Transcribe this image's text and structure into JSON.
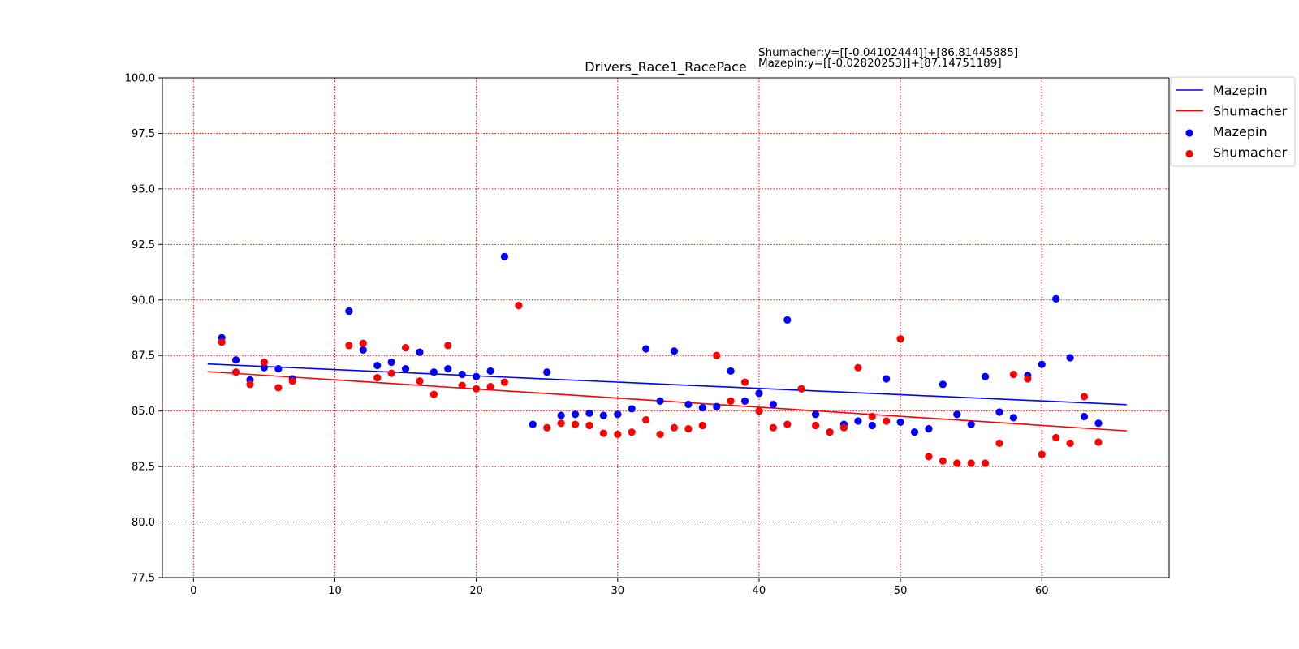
{
  "chart_data": {
    "type": "scatter",
    "title": "Drivers_Race1_RacePace",
    "annotations": [
      "Shumacher:y=[[-0.04102444]]+[86.81445885]",
      "Mazepin:y=[[-0.02820253]]+[87.14751189]"
    ],
    "xlim": [
      -2.2,
      69
    ],
    "ylim": [
      77.5,
      100
    ],
    "x_ticks": [
      0,
      10,
      20,
      30,
      40,
      50,
      60
    ],
    "y_ticks": [
      77.5,
      80.0,
      82.5,
      85.0,
      87.5,
      90.0,
      92.5,
      95.0,
      97.5,
      100.0
    ],
    "y_tick_labels": [
      "77.5",
      "80.0",
      "82.5",
      "85.0",
      "87.5",
      "90.0",
      "92.5",
      "95.0",
      "97.5",
      "100.0"
    ],
    "grid": true,
    "grid_color": "#ff0000",
    "legend_position": "top-right",
    "lines": [
      {
        "name": "Mazepin",
        "color": "#0000ff",
        "slope": -0.02820253,
        "intercept": 87.14751189,
        "x_range": [
          1,
          66
        ]
      },
      {
        "name": "Shumacher",
        "color": "#ff0000",
        "slope": -0.04102444,
        "intercept": 86.81445885,
        "x_range": [
          1,
          66
        ]
      }
    ],
    "series": [
      {
        "name": "Mazepin",
        "color": "#0000ff",
        "points": [
          [
            2,
            88.3
          ],
          [
            3,
            87.3
          ],
          [
            4,
            86.4
          ],
          [
            5,
            86.95
          ],
          [
            6,
            86.9
          ],
          [
            7,
            86.45
          ],
          [
            11,
            89.5
          ],
          [
            12,
            87.75
          ],
          [
            13,
            87.05
          ],
          [
            14,
            87.2
          ],
          [
            15,
            86.9
          ],
          [
            16,
            87.65
          ],
          [
            17,
            86.75
          ],
          [
            18,
            86.9
          ],
          [
            19,
            86.65
          ],
          [
            20,
            86.55
          ],
          [
            21,
            86.8
          ],
          [
            22,
            91.95
          ],
          [
            24,
            84.4
          ],
          [
            25,
            86.75
          ],
          [
            26,
            84.8
          ],
          [
            27,
            84.85
          ],
          [
            28,
            84.9
          ],
          [
            29,
            84.8
          ],
          [
            30,
            84.85
          ],
          [
            31,
            85.1
          ],
          [
            32,
            87.8
          ],
          [
            33,
            85.45
          ],
          [
            34,
            87.7
          ],
          [
            35,
            85.3
          ],
          [
            36,
            85.15
          ],
          [
            37,
            85.2
          ],
          [
            38,
            86.8
          ],
          [
            39,
            85.45
          ],
          [
            40,
            85.8
          ],
          [
            41,
            85.3
          ],
          [
            42,
            89.1
          ],
          [
            43,
            86.0
          ],
          [
            44,
            84.85
          ],
          [
            45,
            84.05
          ],
          [
            46,
            84.4
          ],
          [
            47,
            84.55
          ],
          [
            48,
            84.35
          ],
          [
            49,
            86.45
          ],
          [
            50,
            84.5
          ],
          [
            51,
            84.05
          ],
          [
            52,
            84.2
          ],
          [
            53,
            86.2
          ],
          [
            54,
            84.85
          ],
          [
            55,
            84.4
          ],
          [
            56,
            86.55
          ],
          [
            57,
            84.95
          ],
          [
            58,
            84.7
          ],
          [
            59,
            86.6
          ],
          [
            60,
            87.1
          ],
          [
            61,
            90.05
          ],
          [
            62,
            87.4
          ],
          [
            63,
            84.75
          ],
          [
            64,
            84.45
          ]
        ]
      },
      {
        "name": "Shumacher",
        "color": "#ff0000",
        "points": [
          [
            2,
            88.1
          ],
          [
            3,
            86.75
          ],
          [
            4,
            86.2
          ],
          [
            5,
            87.2
          ],
          [
            6,
            86.05
          ],
          [
            7,
            86.35
          ],
          [
            11,
            87.95
          ],
          [
            12,
            88.05
          ],
          [
            13,
            86.5
          ],
          [
            14,
            86.7
          ],
          [
            15,
            87.85
          ],
          [
            16,
            86.35
          ],
          [
            17,
            85.75
          ],
          [
            18,
            87.95
          ],
          [
            19,
            86.15
          ],
          [
            20,
            86.0
          ],
          [
            21,
            86.1
          ],
          [
            22,
            86.3
          ],
          [
            23,
            89.75
          ],
          [
            25,
            84.25
          ],
          [
            26,
            84.45
          ],
          [
            27,
            84.4
          ],
          [
            28,
            84.35
          ],
          [
            29,
            84.0
          ],
          [
            30,
            83.95
          ],
          [
            31,
            84.05
          ],
          [
            32,
            84.6
          ],
          [
            33,
            83.95
          ],
          [
            34,
            84.25
          ],
          [
            35,
            84.2
          ],
          [
            36,
            84.35
          ],
          [
            37,
            87.5
          ],
          [
            38,
            85.45
          ],
          [
            39,
            86.3
          ],
          [
            40,
            85.0
          ],
          [
            41,
            84.25
          ],
          [
            42,
            84.4
          ],
          [
            43,
            86.0
          ],
          [
            44,
            84.35
          ],
          [
            45,
            84.05
          ],
          [
            46,
            84.25
          ],
          [
            47,
            86.95
          ],
          [
            48,
            84.75
          ],
          [
            49,
            84.55
          ],
          [
            50,
            88.25
          ],
          [
            52,
            82.95
          ],
          [
            53,
            82.75
          ],
          [
            54,
            82.65
          ],
          [
            55,
            82.65
          ],
          [
            56,
            82.65
          ],
          [
            57,
            83.55
          ],
          [
            58,
            86.65
          ],
          [
            59,
            86.45
          ],
          [
            60,
            83.05
          ],
          [
            61,
            83.8
          ],
          [
            62,
            83.55
          ],
          [
            63,
            85.65
          ],
          [
            64,
            83.6
          ]
        ]
      }
    ],
    "legend": [
      {
        "label": "Mazepin",
        "kind": "line",
        "color": "#0000ff"
      },
      {
        "label": "Shumacher",
        "kind": "line",
        "color": "#ff0000"
      },
      {
        "label": "Mazepin",
        "kind": "marker",
        "color": "#0000ff"
      },
      {
        "label": "Shumacher",
        "kind": "marker",
        "color": "#ff0000"
      }
    ]
  }
}
